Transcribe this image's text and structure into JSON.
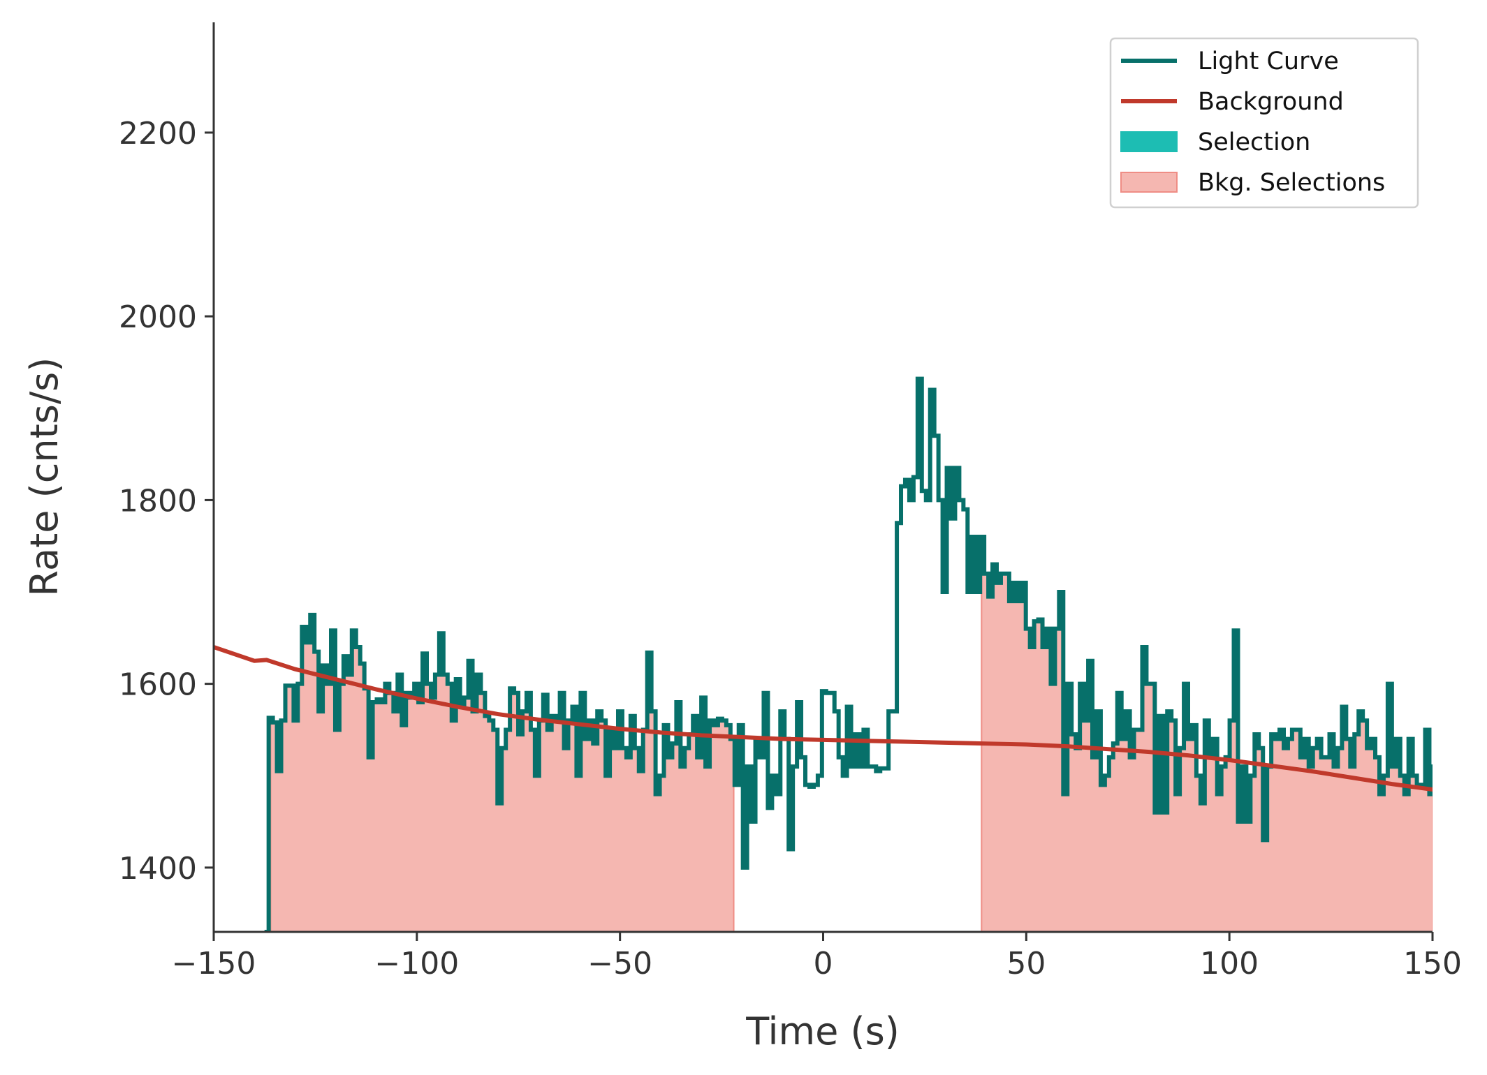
{
  "chart_data": {
    "type": "line",
    "xlabel": "Time (s)",
    "ylabel": "Rate (cnts/s)",
    "xlim": [
      -150,
      150
    ],
    "ylim": [
      1330,
      2320
    ],
    "xticks": [
      -150,
      -100,
      -50,
      0,
      50,
      100,
      150
    ],
    "xtick_labels": [
      "−150",
      "−100",
      "−50",
      "0",
      "50",
      "100",
      "150"
    ],
    "yticks": [
      1400,
      1600,
      1800,
      2000,
      2200
    ],
    "ytick_labels": [
      "1400",
      "1600",
      "1800",
      "2000",
      "2200"
    ],
    "grid": false,
    "legend_position": "top-right",
    "legend": [
      {
        "label": "Light Curve",
        "kind": "line",
        "color": "#07706a"
      },
      {
        "label": "Background",
        "kind": "line",
        "color": "#c0392b"
      },
      {
        "label": "Selection",
        "kind": "patch",
        "color": "#1dbdb3"
      },
      {
        "label": "Bkg. Selections",
        "kind": "patch",
        "color": "#f5b7b1"
      }
    ],
    "colors": {
      "light_curve": "#07706a",
      "background": "#c0392b",
      "selection": "#1dbdb3",
      "bkg_selection_fill": "#f5b7b1",
      "bkg_selection_edge": "#ef8d85",
      "axis": "#333333"
    },
    "bkg_selections": [
      [
        -136,
        -22
      ],
      [
        39,
        150
      ]
    ],
    "light_curve": {
      "bin_width": 1.024,
      "x_start": -137.5,
      "values": [
        1330,
        1563,
        1558,
        1505,
        1560,
        1598,
        1598,
        1560,
        1600,
        1662,
        1645,
        1675,
        1635,
        1570,
        1620,
        1600,
        1658,
        1550,
        1600,
        1630,
        1610,
        1658,
        1640,
        1622,
        1595,
        1520,
        1580,
        1583,
        1580,
        1600,
        1590,
        1570,
        1610,
        1555,
        1590,
        1585,
        1600,
        1580,
        1633,
        1600,
        1585,
        1610,
        1655,
        1610,
        1600,
        1560,
        1605,
        1575,
        1585,
        1625,
        1570,
        1610,
        1590,
        1565,
        1560,
        1550,
        1470,
        1530,
        1550,
        1595,
        1590,
        1545,
        1570,
        1590,
        1550,
        1500,
        1560,
        1588,
        1550,
        1565,
        1560,
        1590,
        1530,
        1560,
        1575,
        1500,
        1590,
        1540,
        1560,
        1535,
        1570,
        1560,
        1500,
        1550,
        1530,
        1570,
        1530,
        1520,
        1565,
        1530,
        1505,
        1550,
        1634,
        1570,
        1480,
        1500,
        1555,
        1520,
        1535,
        1580,
        1510,
        1530,
        1545,
        1565,
        1520,
        1585,
        1510,
        1560,
        1555,
        1562,
        1560,
        1555,
        1540,
        1490,
        1555,
        1400,
        1510,
        1450,
        1540,
        1520,
        1590,
        1465,
        1500,
        1480,
        1570,
        1540,
        1420,
        1510,
        1580,
        1520,
        1490,
        1488,
        1490,
        1500,
        1592,
        1590,
        1590,
        1570,
        1520,
        1500,
        1575,
        1510,
        1545,
        1510,
        1550,
        1510,
        1510,
        1505,
        1508,
        1508,
        1570,
        1570,
        1775,
        1815,
        1822,
        1800,
        1825,
        1932,
        1810,
        1800,
        1920,
        1870,
        1800,
        1700,
        1835,
        1780,
        1835,
        1800,
        1790,
        1700,
        1760,
        1700,
        1760,
        1720,
        1695,
        1730,
        1710,
        1720,
        1720,
        1690,
        1710,
        1690,
        1710,
        1660,
        1640,
        1668,
        1670,
        1640,
        1660,
        1600,
        1660,
        1700,
        1480,
        1600,
        1545,
        1530,
        1600,
        1560,
        1625,
        1520,
        1570,
        1490,
        1500,
        1520,
        1535,
        1590,
        1540,
        1570,
        1520,
        1550,
        1550,
        1640,
        1600,
        1600,
        1460,
        1565,
        1460,
        1570,
        1560,
        1480,
        1530,
        1600,
        1540,
        1555,
        1500,
        1470,
        1560,
        1520,
        1540,
        1480,
        1510,
        1520,
        1560,
        1658,
        1450,
        1510,
        1450,
        1500,
        1545,
        1530,
        1430,
        1510,
        1545,
        1540,
        1550,
        1530,
        1540,
        1550,
        1550,
        1520,
        1540,
        1510,
        1530,
        1540,
        1520,
        1520,
        1545,
        1510,
        1530,
        1575,
        1540,
        1510,
        1545,
        1570,
        1560,
        1530,
        1540,
        1520,
        1480,
        1500,
        1600,
        1510,
        1540,
        1500,
        1480,
        1540,
        1500,
        1490,
        1490,
        1550,
        1480,
        1510,
        1500,
        1510,
        1510,
        1560,
        1490,
        1470,
        1480,
        1510,
        1470,
        1508,
        1590,
        1520,
        1490,
        1480,
        1500,
        1510,
        1500,
        1450,
        1490,
        1520,
        1470,
        1520,
        1480,
        1560,
        1570,
        1450,
        1430,
        1460,
        1430,
        1440,
        1470,
        1440,
        1490,
        1470,
        1500,
        1480,
        1460,
        1450,
        1480,
        1540,
        1500,
        1590,
        1460,
        1520,
        1480,
        1430,
        1450,
        1460,
        1480,
        1490,
        1470,
        1500,
        1520,
        1450,
        1510,
        1440,
        1510,
        1460,
        1470,
        1490,
        1460,
        1480,
        1520,
        1500,
        1470,
        1510,
        1500,
        1510,
        1490,
        1480,
        1510,
        1500,
        1520
      ]
    },
    "background_model": {
      "x": [
        -150,
        -140,
        -137,
        -130,
        -120,
        -110,
        -100,
        -90,
        -80,
        -70,
        -60,
        -50,
        -40,
        -30,
        -20,
        -10,
        0,
        10,
        20,
        30,
        40,
        50,
        60,
        70,
        80,
        90,
        100,
        110,
        120,
        130,
        140,
        150
      ],
      "y": [
        1640,
        1625,
        1626,
        1616,
        1605,
        1594,
        1584,
        1575,
        1567,
        1561,
        1556,
        1551,
        1547,
        1544,
        1542,
        1540,
        1539,
        1538,
        1537,
        1536,
        1535,
        1534,
        1532,
        1529,
        1526,
        1522,
        1517,
        1511,
        1505,
        1498,
        1491,
        1485
      ]
    }
  }
}
